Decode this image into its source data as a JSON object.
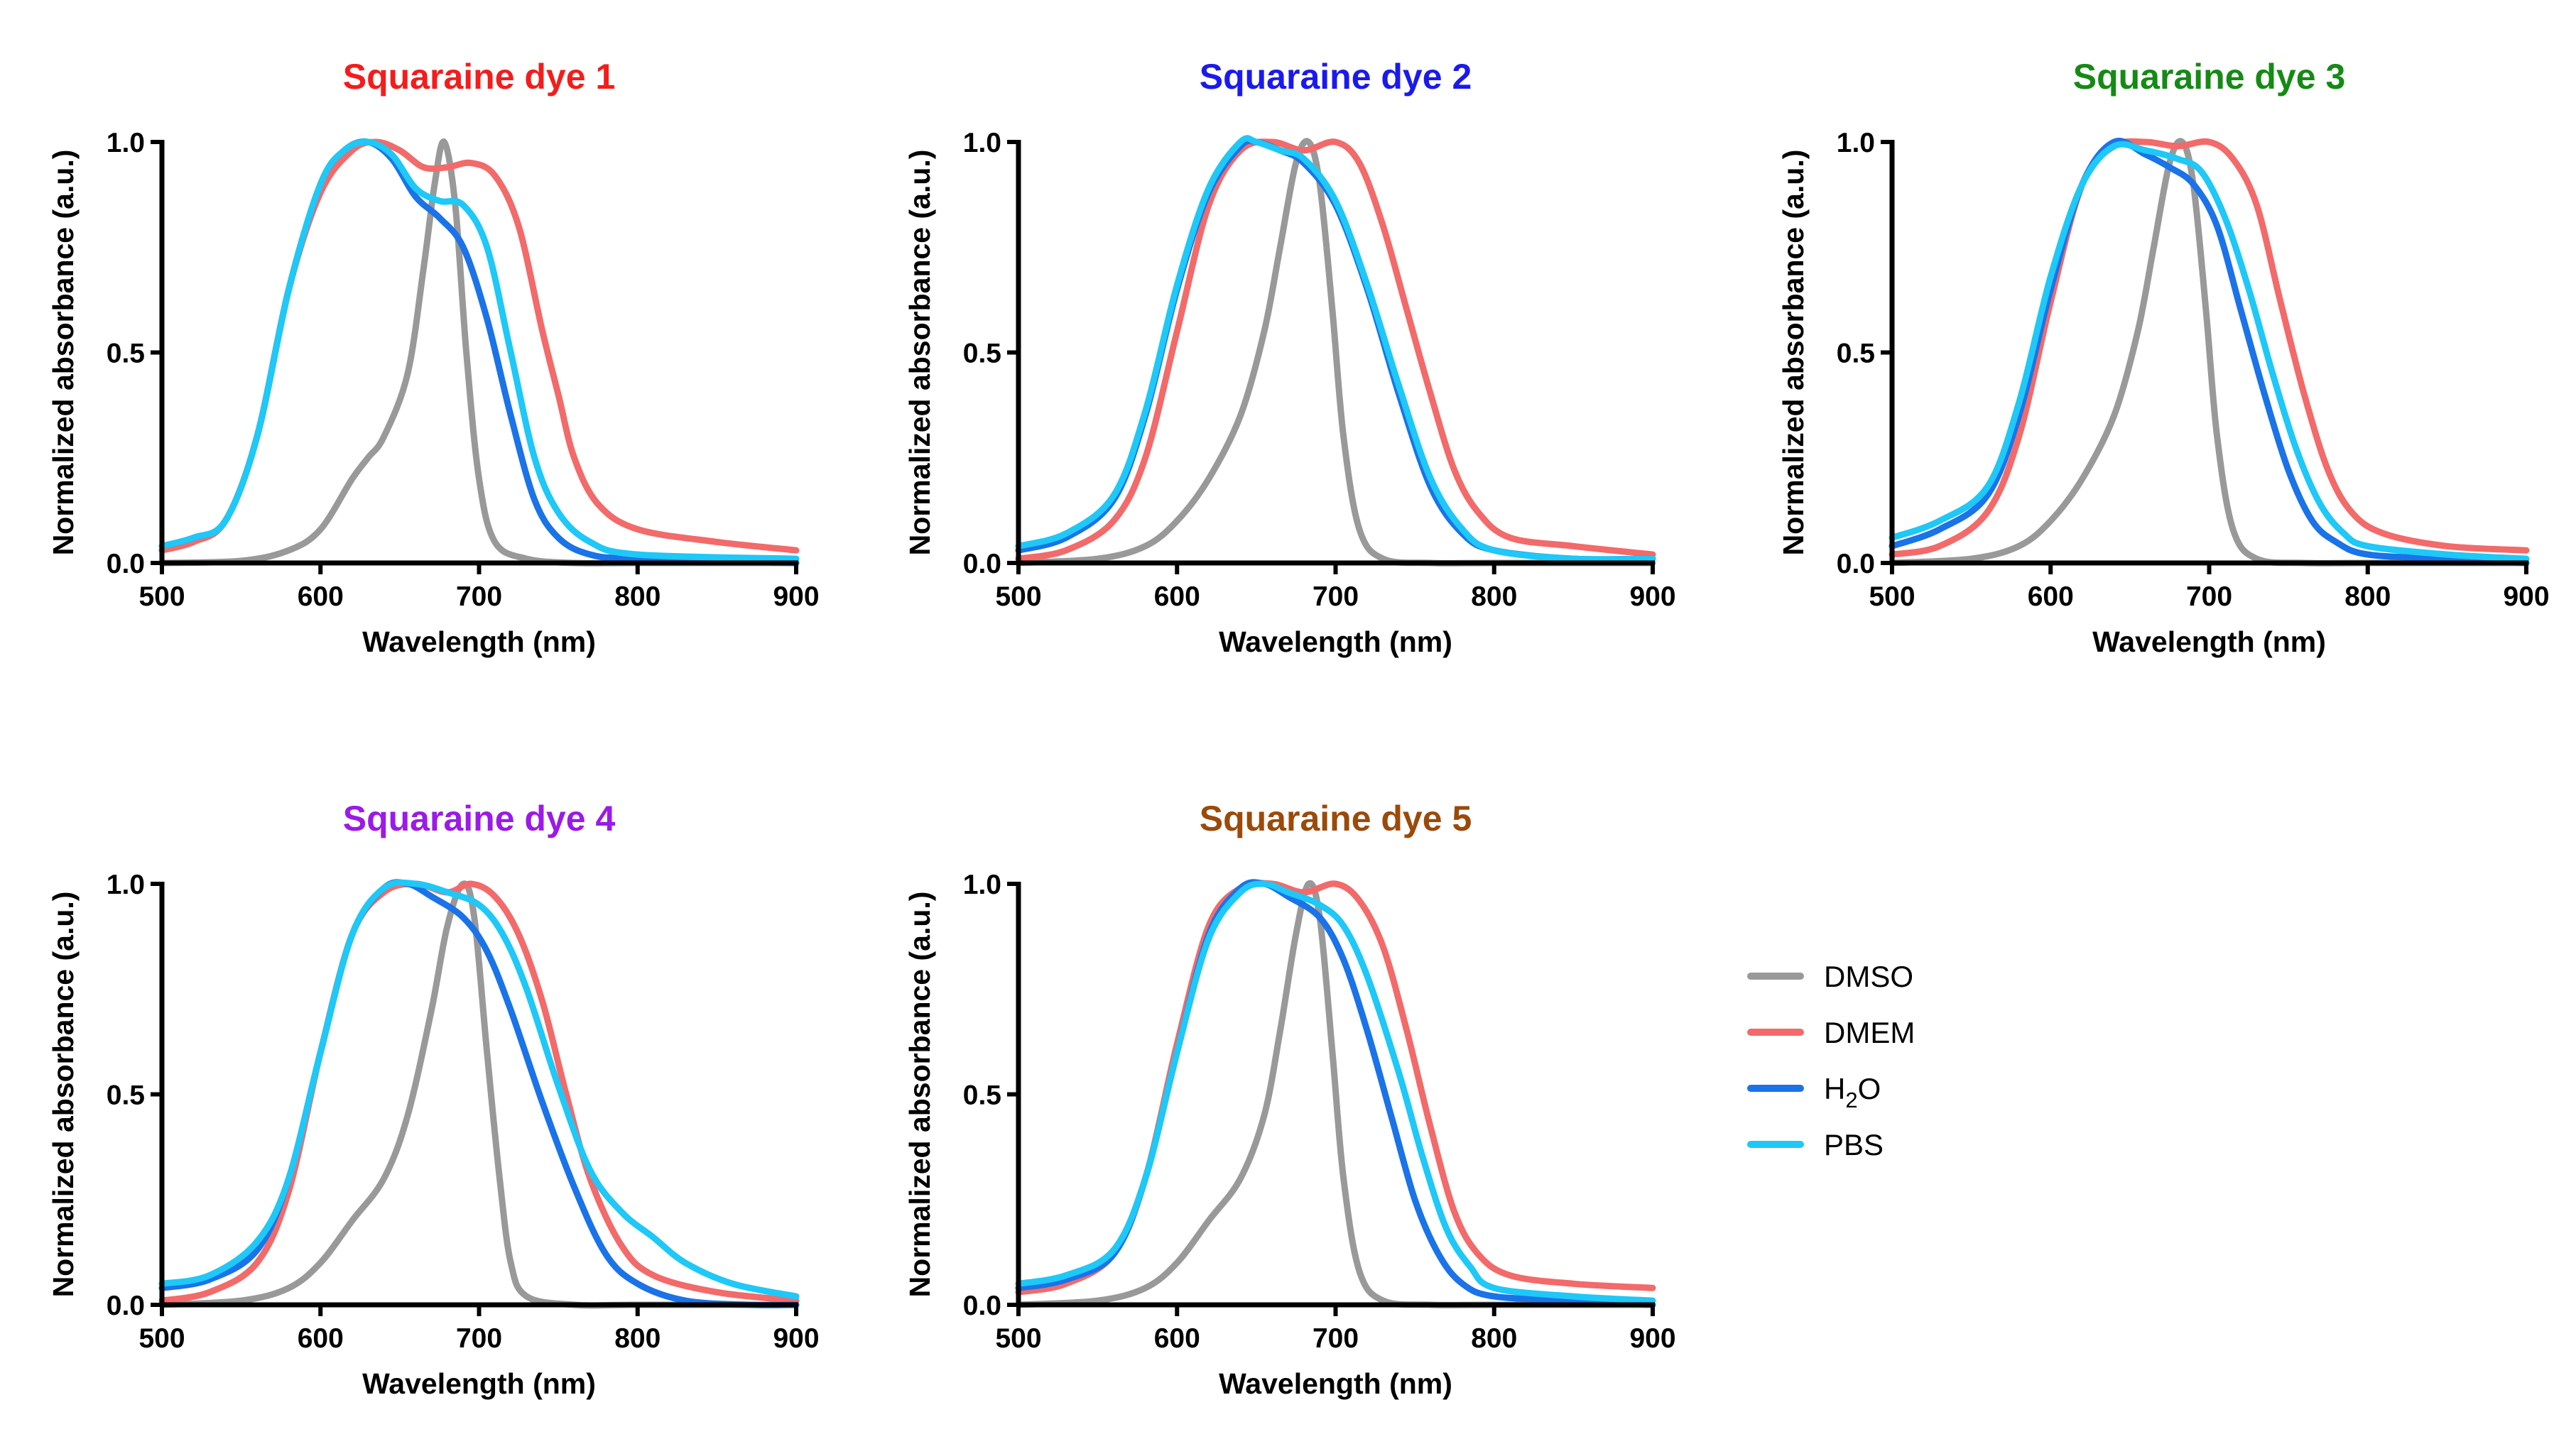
{
  "figure": {
    "legend": [
      {
        "name": "DMSO",
        "color": "#999999"
      },
      {
        "name": "DMEM",
        "color": "#f26a6a"
      },
      {
        "name": "H2O",
        "color": "#1a73e8"
      },
      {
        "name": "PBS",
        "color": "#1ec8f7"
      }
    ]
  },
  "chart_data": [
    {
      "type": "line",
      "title": "Squaraine dye 1",
      "title_color": "#f41c1c",
      "xlabel": "Wavelength (nm)",
      "ylabel": "Normalized absorbance (a.u.)",
      "xlim": [
        500,
        900
      ],
      "ylim": [
        0,
        1.0
      ],
      "xticks": [
        "500",
        "600",
        "700",
        "800",
        "900"
      ],
      "yticks": [
        "0.0",
        "0.5",
        "1.0"
      ],
      "series": [
        {
          "name": "DMSO",
          "color": "#999999",
          "x": [
            500,
            550,
            580,
            600,
            620,
            630,
            640,
            655,
            665,
            672,
            678,
            685,
            692,
            700,
            710,
            730,
            760,
            800,
            900
          ],
          "y": [
            0,
            0.005,
            0.03,
            0.08,
            0.2,
            0.25,
            0.3,
            0.45,
            0.7,
            0.9,
            1.0,
            0.85,
            0.5,
            0.2,
            0.05,
            0.01,
            0,
            0,
            0
          ]
        },
        {
          "name": "DMEM",
          "color": "#f26a6a",
          "x": [
            500,
            520,
            540,
            560,
            580,
            600,
            620,
            635,
            650,
            665,
            680,
            695,
            710,
            725,
            740,
            750,
            760,
            775,
            800,
            850,
            900
          ],
          "y": [
            0.03,
            0.05,
            0.1,
            0.3,
            0.65,
            0.88,
            0.98,
            1.0,
            0.98,
            0.94,
            0.94,
            0.95,
            0.92,
            0.8,
            0.55,
            0.4,
            0.25,
            0.14,
            0.08,
            0.05,
            0.03
          ]
        },
        {
          "name": "H2O",
          "color": "#1a73e8",
          "x": [
            500,
            520,
            540,
            560,
            580,
            600,
            615,
            630,
            645,
            660,
            675,
            690,
            705,
            720,
            735,
            750,
            770,
            800,
            900
          ],
          "y": [
            0.04,
            0.06,
            0.1,
            0.3,
            0.65,
            0.9,
            0.98,
            1.0,
            0.96,
            0.87,
            0.82,
            0.75,
            0.58,
            0.35,
            0.15,
            0.06,
            0.02,
            0.01,
            0
          ]
        },
        {
          "name": "PBS",
          "color": "#1ec8f7",
          "x": [
            500,
            520,
            540,
            560,
            580,
            600,
            615,
            630,
            645,
            660,
            675,
            690,
            705,
            720,
            735,
            750,
            770,
            800,
            900
          ],
          "y": [
            0.04,
            0.06,
            0.1,
            0.3,
            0.65,
            0.9,
            0.98,
            1.0,
            0.97,
            0.89,
            0.86,
            0.85,
            0.75,
            0.5,
            0.25,
            0.12,
            0.05,
            0.02,
            0.01
          ]
        }
      ]
    },
    {
      "type": "line",
      "title": "Squaraine dye 2",
      "title_color": "#1a1aee",
      "xlabel": "Wavelength (nm)",
      "ylabel": "Normalized absorbance (a.u.)",
      "xlim": [
        500,
        900
      ],
      "ylim": [
        0,
        1.0
      ],
      "xticks": [
        "500",
        "600",
        "700",
        "800",
        "900"
      ],
      "yticks": [
        "0.0",
        "0.5",
        "1.0"
      ],
      "series": [
        {
          "name": "DMSO",
          "color": "#999999",
          "x": [
            500,
            550,
            580,
            600,
            620,
            640,
            655,
            665,
            675,
            683,
            690,
            698,
            705,
            715,
            730,
            760,
            800,
            900
          ],
          "y": [
            0,
            0.01,
            0.04,
            0.1,
            0.2,
            0.35,
            0.55,
            0.75,
            0.95,
            1.0,
            0.9,
            0.6,
            0.3,
            0.08,
            0.01,
            0,
            0,
            0
          ]
        },
        {
          "name": "DMEM",
          "color": "#f26a6a",
          "x": [
            500,
            530,
            560,
            580,
            600,
            620,
            640,
            660,
            680,
            700,
            715,
            730,
            745,
            760,
            775,
            790,
            810,
            850,
            900
          ],
          "y": [
            0.01,
            0.03,
            0.1,
            0.25,
            0.55,
            0.85,
            0.98,
            1.0,
            0.98,
            1.0,
            0.95,
            0.8,
            0.6,
            0.4,
            0.22,
            0.12,
            0.06,
            0.04,
            0.02
          ]
        },
        {
          "name": "H2O",
          "color": "#1a73e8",
          "x": [
            500,
            530,
            560,
            580,
            600,
            620,
            640,
            650,
            665,
            680,
            700,
            720,
            740,
            760,
            780,
            800,
            850,
            900
          ],
          "y": [
            0.03,
            0.06,
            0.15,
            0.35,
            0.65,
            0.88,
            0.99,
            1.0,
            0.98,
            0.95,
            0.85,
            0.65,
            0.4,
            0.18,
            0.07,
            0.03,
            0.01,
            0.01
          ]
        },
        {
          "name": "PBS",
          "color": "#1ec8f7",
          "x": [
            500,
            530,
            560,
            580,
            600,
            620,
            640,
            650,
            665,
            680,
            700,
            720,
            740,
            760,
            780,
            800,
            850,
            900
          ],
          "y": [
            0.04,
            0.07,
            0.16,
            0.36,
            0.66,
            0.89,
            1.0,
            1.0,
            0.98,
            0.96,
            0.86,
            0.66,
            0.42,
            0.2,
            0.08,
            0.03,
            0.01,
            0.01
          ]
        }
      ]
    },
    {
      "type": "line",
      "title": "Squaraine dye 3",
      "title_color": "#158a15",
      "xlabel": "Wavelength (nm)",
      "ylabel": "Normalized absorbance (a.u.)",
      "xlim": [
        500,
        900
      ],
      "ylim": [
        0,
        1.0
      ],
      "xticks": [
        "500",
        "600",
        "700",
        "800",
        "900"
      ],
      "yticks": [
        "0.0",
        "0.5",
        "1.0"
      ],
      "series": [
        {
          "name": "DMSO",
          "color": "#999999",
          "x": [
            500,
            550,
            580,
            600,
            620,
            640,
            655,
            665,
            675,
            683,
            690,
            698,
            705,
            715,
            730,
            760,
            800,
            900
          ],
          "y": [
            0,
            0.01,
            0.04,
            0.1,
            0.2,
            0.35,
            0.55,
            0.75,
            0.95,
            1.0,
            0.9,
            0.6,
            0.3,
            0.08,
            0.01,
            0,
            0,
            0
          ]
        },
        {
          "name": "DMEM",
          "color": "#f26a6a",
          "x": [
            500,
            530,
            560,
            580,
            600,
            620,
            640,
            660,
            680,
            700,
            715,
            730,
            745,
            760,
            775,
            790,
            810,
            850,
            900
          ],
          "y": [
            0.02,
            0.04,
            0.12,
            0.3,
            0.62,
            0.9,
            0.99,
            1.0,
            0.99,
            1.0,
            0.96,
            0.85,
            0.62,
            0.4,
            0.22,
            0.12,
            0.07,
            0.04,
            0.03
          ]
        },
        {
          "name": "H2O",
          "color": "#1a73e8",
          "x": [
            500,
            530,
            560,
            580,
            600,
            620,
            640,
            660,
            675,
            690,
            705,
            720,
            735,
            750,
            765,
            780,
            800,
            850,
            900
          ],
          "y": [
            0.04,
            0.08,
            0.16,
            0.35,
            0.65,
            0.9,
            1.0,
            0.97,
            0.94,
            0.9,
            0.8,
            0.6,
            0.4,
            0.22,
            0.1,
            0.05,
            0.02,
            0.01,
            0
          ]
        },
        {
          "name": "PBS",
          "color": "#1ec8f7",
          "x": [
            500,
            530,
            560,
            580,
            600,
            620,
            640,
            660,
            680,
            695,
            710,
            725,
            740,
            755,
            770,
            785,
            800,
            850,
            900
          ],
          "y": [
            0.06,
            0.1,
            0.18,
            0.38,
            0.68,
            0.9,
            0.99,
            0.98,
            0.96,
            0.93,
            0.82,
            0.65,
            0.45,
            0.27,
            0.14,
            0.07,
            0.04,
            0.02,
            0.01
          ]
        }
      ]
    },
    {
      "type": "line",
      "title": "Squaraine dye 4",
      "title_color": "#9b1ae8",
      "xlabel": "Wavelength (nm)",
      "ylabel": "Normalized absorbance (a.u.)",
      "xlim": [
        500,
        900
      ],
      "ylim": [
        0,
        1.0
      ],
      "xticks": [
        "500",
        "600",
        "700",
        "800",
        "900"
      ],
      "yticks": [
        "0.0",
        "0.5",
        "1.0"
      ],
      "series": [
        {
          "name": "DMSO",
          "color": "#999999",
          "x": [
            500,
            550,
            580,
            600,
            620,
            640,
            655,
            670,
            680,
            690,
            697,
            705,
            713,
            720,
            730,
            760,
            800,
            900
          ],
          "y": [
            0,
            0.01,
            0.04,
            0.1,
            0.2,
            0.3,
            0.45,
            0.7,
            0.9,
            1.0,
            0.92,
            0.6,
            0.3,
            0.1,
            0.02,
            0,
            0,
            0
          ]
        },
        {
          "name": "DMEM",
          "color": "#f26a6a",
          "x": [
            500,
            530,
            560,
            580,
            600,
            620,
            640,
            660,
            680,
            695,
            710,
            725,
            740,
            755,
            770,
            790,
            810,
            850,
            900
          ],
          "y": [
            0.01,
            0.03,
            0.1,
            0.27,
            0.6,
            0.88,
            0.98,
            1.0,
            0.98,
            1.0,
            0.97,
            0.88,
            0.72,
            0.5,
            0.3,
            0.14,
            0.07,
            0.03,
            0.01
          ]
        },
        {
          "name": "H2O",
          "color": "#1a73e8",
          "x": [
            500,
            530,
            560,
            580,
            600,
            620,
            640,
            655,
            670,
            690,
            705,
            720,
            740,
            760,
            780,
            800,
            830,
            870,
            900
          ],
          "y": [
            0.04,
            0.06,
            0.13,
            0.3,
            0.6,
            0.88,
            0.99,
            1.0,
            0.97,
            0.92,
            0.84,
            0.7,
            0.48,
            0.28,
            0.12,
            0.05,
            0.01,
            0,
            0
          ]
        },
        {
          "name": "PBS",
          "color": "#1ec8f7",
          "x": [
            500,
            530,
            560,
            580,
            600,
            620,
            640,
            660,
            680,
            700,
            715,
            730,
            750,
            770,
            790,
            810,
            830,
            860,
            900
          ],
          "y": [
            0.05,
            0.07,
            0.15,
            0.3,
            0.6,
            0.88,
            0.99,
            1.0,
            0.98,
            0.95,
            0.88,
            0.75,
            0.52,
            0.32,
            0.22,
            0.16,
            0.1,
            0.05,
            0.02
          ]
        }
      ]
    },
    {
      "type": "line",
      "title": "Squaraine dye 5",
      "title_color": "#9b4a0a",
      "xlabel": "Wavelength (nm)",
      "ylabel": "Normalized absorbance (a.u.)",
      "xlim": [
        500,
        900
      ],
      "ylim": [
        0,
        1.0
      ],
      "xticks": [
        "500",
        "600",
        "700",
        "800",
        "900"
      ],
      "yticks": [
        "0.0",
        "0.5",
        "1.0"
      ],
      "series": [
        {
          "name": "DMSO",
          "color": "#999999",
          "x": [
            500,
            550,
            580,
            600,
            620,
            640,
            655,
            665,
            675,
            683,
            690,
            698,
            705,
            715,
            730,
            760,
            800,
            900
          ],
          "y": [
            0,
            0.01,
            0.04,
            0.1,
            0.2,
            0.3,
            0.45,
            0.65,
            0.88,
            1.0,
            0.92,
            0.6,
            0.3,
            0.08,
            0.01,
            0,
            0,
            0
          ]
        },
        {
          "name": "DMEM",
          "color": "#f26a6a",
          "x": [
            500,
            530,
            560,
            580,
            600,
            620,
            640,
            660,
            680,
            700,
            715,
            730,
            745,
            760,
            775,
            790,
            810,
            850,
            900
          ],
          "y": [
            0.03,
            0.05,
            0.12,
            0.3,
            0.62,
            0.9,
            0.99,
            1.0,
            0.98,
            1.0,
            0.96,
            0.85,
            0.65,
            0.42,
            0.22,
            0.12,
            0.07,
            0.05,
            0.04
          ]
        },
        {
          "name": "H2O",
          "color": "#1a73e8",
          "x": [
            500,
            530,
            560,
            580,
            600,
            620,
            640,
            655,
            670,
            690,
            705,
            720,
            735,
            750,
            765,
            780,
            800,
            850,
            900
          ],
          "y": [
            0.04,
            0.06,
            0.12,
            0.3,
            0.6,
            0.88,
            0.99,
            1.0,
            0.97,
            0.92,
            0.82,
            0.65,
            0.45,
            0.25,
            0.12,
            0.05,
            0.02,
            0.01,
            0
          ]
        },
        {
          "name": "PBS",
          "color": "#1ec8f7",
          "x": [
            500,
            530,
            560,
            580,
            600,
            620,
            640,
            655,
            670,
            690,
            705,
            720,
            740,
            755,
            770,
            785,
            800,
            850,
            900
          ],
          "y": [
            0.05,
            0.07,
            0.13,
            0.3,
            0.6,
            0.87,
            0.98,
            1.0,
            0.98,
            0.95,
            0.9,
            0.78,
            0.55,
            0.35,
            0.18,
            0.09,
            0.04,
            0.02,
            0.01
          ]
        }
      ]
    }
  ]
}
